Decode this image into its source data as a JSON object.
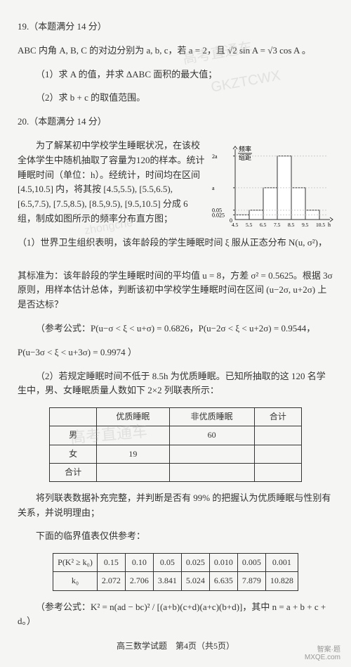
{
  "q19": {
    "header": "19.（本题满分 14 分）",
    "line1_pre": "Δ",
    "line1": "ABC 内角 A, B, C 的对边分别为 a, b, c，若 a = 2，且 √2 sin A = √3 cos A 。",
    "part1": "（1）求 A 的值，并求 ΔABC 面积的最大值；",
    "part2": "（2）求 b + c 的取值范围。"
  },
  "q20": {
    "header": "20.（本题满分 14 分）",
    "intro1": "为了解某初中学校学生睡眠状况，在该校全体学生中随机抽取了容量为120的样本。统计睡眠时间（单位：h）。经统计，时间均在区间 [4.5,10.5] 内，将其按 [4.5,5.5), [5.5,6.5), [6.5,7.5), [7.5,8.5), [8.5,9.5), [9.5,10.5] 分成 6 组，制成如图所示的频率分布直方图；",
    "part1a": "（1）世界卫生组织表明，该年龄段的学生睡眠时间 ξ 服从正态分布 N(u, σ²)，",
    "part1b": "其标准为：该年龄段的学生睡眠时间的平均值 u = 8，方差 σ² = 0.5625。根据 3σ 原则，用样本估计总体，判断该初中学校学生睡眠时间在区间 (u−2σ, u+2σ) 上是否达标？",
    "ref1": "（参考公式：P(u−σ < ξ < u+σ) = 0.6826，P(u−2σ < ξ < u+2σ) = 0.9544，",
    "ref2": "P(u−3σ < ξ < u+3σ) = 0.9974 ）",
    "part2a": "（2）若规定睡眠时间不低于 8.5h 为优质睡眠。已知所抽取的这 120 名学生中，男、女睡眠质量人数如下 2×2 列联表所示：",
    "part2b": "将列联表数据补充完整，并判断是否有 99% 的把握认为优质睡眠与性别有关系，并说明理由；",
    "critIntro": "下面的临界值表仅供参考：",
    "formula": "（参考公式：K² = n(ad − bc)² / [(a+b)(c+d)(a+c)(b+d)]，其中 n = a + b + c + d。）"
  },
  "chart": {
    "ylabel1": "频率",
    "ylabel2": "组距",
    "yticks": [
      "2a",
      "a",
      "0.05",
      "0.025"
    ],
    "xticks": [
      "4.5",
      "5.5",
      "6.5",
      "7.5",
      "8.5",
      "9.5",
      "10.5"
    ],
    "xunit": "h",
    "heights_rel": [
      0.025,
      0.05,
      0.17,
      0.34,
      0.17,
      0.05
    ],
    "axis_color": "#333",
    "bar_fill": "#ffffff",
    "bar_stroke": "#333"
  },
  "table1": {
    "headers": [
      "",
      "优质睡眠",
      "非优质睡眠",
      "合计"
    ],
    "rows": [
      [
        "男",
        "",
        "60",
        ""
      ],
      [
        "女",
        "19",
        "",
        ""
      ],
      [
        "合计",
        "",
        "",
        ""
      ]
    ]
  },
  "table2": {
    "row1": [
      "P(K² ≥ k₀)",
      "0.15",
      "0.10",
      "0.05",
      "0.025",
      "0.010",
      "0.005",
      "0.001"
    ],
    "row2": [
      "k₀",
      "2.072",
      "2.706",
      "3.841",
      "5.024",
      "6.635",
      "7.879",
      "10.828"
    ]
  },
  "footer": "高三数学试题　第4页（共5页）",
  "stamp": {
    "l1": "智案·题",
    "l2": "MXQE.com"
  },
  "watermarks": {
    "w1": "高考直通车",
    "w2": "GKZTCWX",
    "w3": "zhongche",
    "w4": "高考直通车"
  }
}
